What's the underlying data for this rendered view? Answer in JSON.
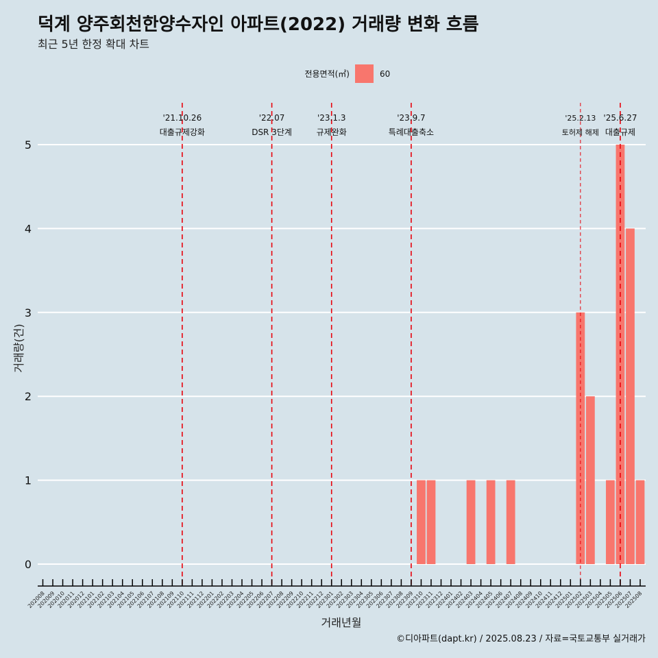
{
  "title": "덕계 양주회천한양수자인 아파트(2022) 거래량 변화 흐름",
  "subtitle": "최근 5년 한정 확대 차트",
  "caption": "©디아파트(dapt.kr) / 2025.08.23 / 자료=국토교통부 실거래가",
  "colors": {
    "background": "#d6e3ea",
    "bar": "#f8766d",
    "grid": "#ffffff",
    "event_line": "#e8000b"
  },
  "chart_data": {
    "type": "bar",
    "xlabel": "거래년월",
    "ylabel": "거래량(건)",
    "ylim": [
      0,
      5
    ],
    "yticks": [
      0,
      1,
      2,
      3,
      4,
      5
    ],
    "grid": true,
    "legend": {
      "title": "전용면적(㎡)",
      "position": "top",
      "entries": [
        "60"
      ]
    },
    "categories": [
      "202008",
      "202009",
      "202010",
      "202011",
      "202012",
      "202101",
      "202102",
      "202103",
      "202104",
      "202105",
      "202106",
      "202107",
      "202108",
      "202109",
      "202110",
      "202111",
      "202112",
      "202201",
      "202202",
      "202203",
      "202204",
      "202205",
      "202206",
      "202207",
      "202208",
      "202209",
      "202210",
      "202211",
      "202212",
      "202301",
      "202302",
      "202303",
      "202304",
      "202305",
      "202306",
      "202307",
      "202308",
      "202309",
      "202310",
      "202311",
      "202312",
      "202401",
      "202402",
      "202403",
      "202404",
      "202405",
      "202406",
      "202407",
      "202408",
      "202409",
      "202410",
      "202411",
      "202412",
      "202501",
      "202502",
      "202503",
      "202504",
      "202505",
      "202506",
      "202507",
      "202508"
    ],
    "series": [
      {
        "name": "60",
        "values": [
          0,
          0,
          0,
          0,
          0,
          0,
          0,
          0,
          0,
          0,
          0,
          0,
          0,
          0,
          0,
          0,
          0,
          0,
          0,
          0,
          0,
          0,
          0,
          0,
          0,
          0,
          0,
          0,
          0,
          0,
          0,
          0,
          0,
          0,
          0,
          0,
          0,
          0,
          1,
          1,
          0,
          0,
          0,
          1,
          0,
          1,
          0,
          1,
          0,
          0,
          0,
          0,
          0,
          0,
          3,
          2,
          0,
          1,
          5,
          4,
          1
        ]
      }
    ],
    "events": [
      {
        "date": "'21.10.26",
        "label": "대출규제강화",
        "at": "202110"
      },
      {
        "date": "'22.07",
        "label": "DSR 3단계",
        "at": "202207"
      },
      {
        "date": "'23.1.3",
        "label": "규제완화",
        "at": "202301"
      },
      {
        "date": "'23.9.7",
        "label": "특례대출축소",
        "at": "202309"
      },
      {
        "date": "'25.2.13",
        "label": "토허제 해제",
        "at": "202502"
      },
      {
        "date": "'25.6.27",
        "label": "대출규제",
        "at": "202506"
      }
    ]
  }
}
